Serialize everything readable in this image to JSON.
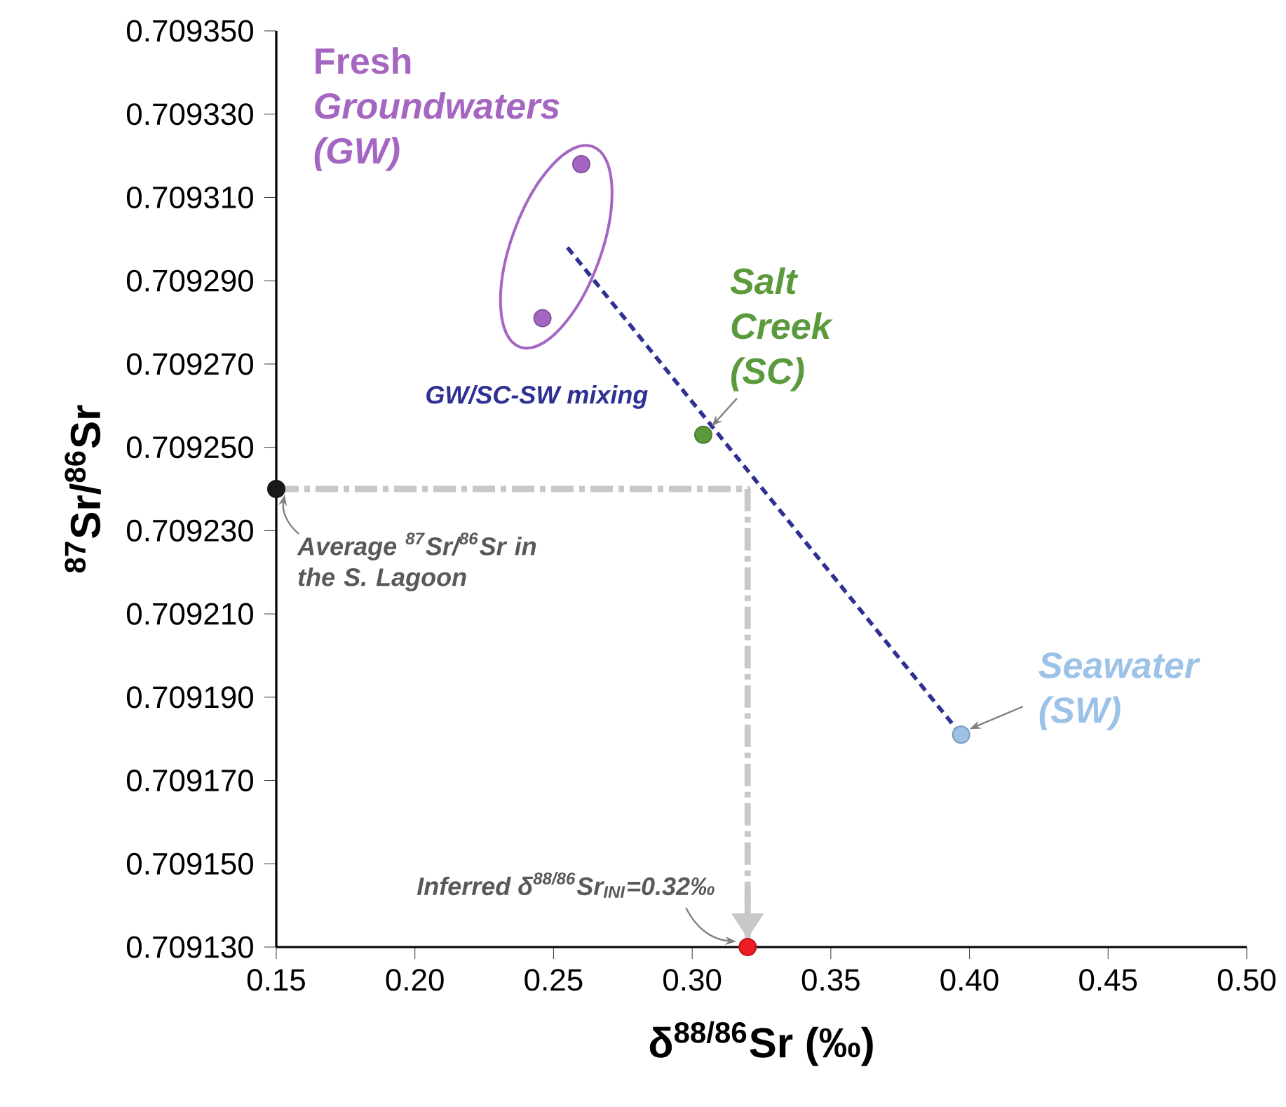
{
  "chart_data": {
    "type": "scatter",
    "xlabel": "δ$^{88/86}$Sr (‰)",
    "ylabel": "$^{87}$Sr/$^{86}$Sr",
    "xlim": [
      0.15,
      0.5
    ],
    "ylim": [
      0.70913,
      0.70935
    ],
    "xticks": [
      {
        "value": 0.15,
        "label": "0.15"
      },
      {
        "value": 0.2,
        "label": "0.20"
      },
      {
        "value": 0.25,
        "label": "0.25"
      },
      {
        "value": 0.3,
        "label": "0.30"
      },
      {
        "value": 0.35,
        "label": "0.35"
      },
      {
        "value": 0.4,
        "label": "0.40"
      },
      {
        "value": 0.45,
        "label": "0.45"
      },
      {
        "value": 0.5,
        "label": "0.50"
      }
    ],
    "yticks": [
      {
        "value": 0.70913,
        "label": "0.709130"
      },
      {
        "value": 0.70915,
        "label": "0.709150"
      },
      {
        "value": 0.70917,
        "label": "0.709170"
      },
      {
        "value": 0.70919,
        "label": "0.709190"
      },
      {
        "value": 0.70921,
        "label": "0.709210"
      },
      {
        "value": 0.70923,
        "label": "0.709230"
      },
      {
        "value": 0.70925,
        "label": "0.709250"
      },
      {
        "value": 0.70927,
        "label": "0.709270"
      },
      {
        "value": 0.70929,
        "label": "0.709290"
      },
      {
        "value": 0.70931,
        "label": "0.709310"
      },
      {
        "value": 0.70933,
        "label": "0.709330"
      },
      {
        "value": 0.70935,
        "label": "0.709350"
      }
    ],
    "grid": false,
    "legend": false,
    "series": [
      {
        "name": "GW/SC-SW mixing",
        "type": "line",
        "marker": "none",
        "line_style": "dashed",
        "color": "#2e3192",
        "x": [
          0.255,
          0.397
        ],
        "values": [
          0.709298,
          0.709181
        ]
      },
      {
        "type": "line",
        "marker": "none",
        "line_style": "dashed",
        "color": "#c8c8c8",
        "x": [
          0.15,
          0.32,
          0.32
        ],
        "values": [
          0.70924,
          0.70924,
          0.70913
        ]
      },
      {
        "name": "Fresh *Groundwaters (GW)*",
        "marker": "circle",
        "color": "#a566c2",
        "x": [
          0.26,
          0.246
        ],
        "values": [
          0.709318,
          0.709281
        ]
      },
      {
        "name": "*Salt Creek (SC)*",
        "marker": "circle",
        "color": "#5b9a3c",
        "x": [
          0.304
        ],
        "values": [
          0.709253
        ]
      },
      {
        "name": "*Seawater (SW)*",
        "marker": "circle",
        "color": "#9cc2e8",
        "x": [
          0.397
        ],
        "values": [
          0.709181
        ]
      },
      {
        "marker": "circle",
        "color": "#1a1a1a",
        "x": [
          0.15
        ],
        "values": [
          0.70924
        ]
      },
      {
        "marker": "circle",
        "color": "#ee1c24",
        "x": [
          0.32
        ],
        "values": [
          0.70913
        ]
      }
    ],
    "annotations": [
      {
        "text": "Average $^{87}$Sr/$^{86}$Sr in the S. Lagoon",
        "x": 0.15,
        "y": 0.70924
      },
      {
        "text": "Inferred δ$^{88/86}$Sr$_{INI}$=0.32‰",
        "x": 0.32,
        "y": 0.70913
      }
    ]
  }
}
